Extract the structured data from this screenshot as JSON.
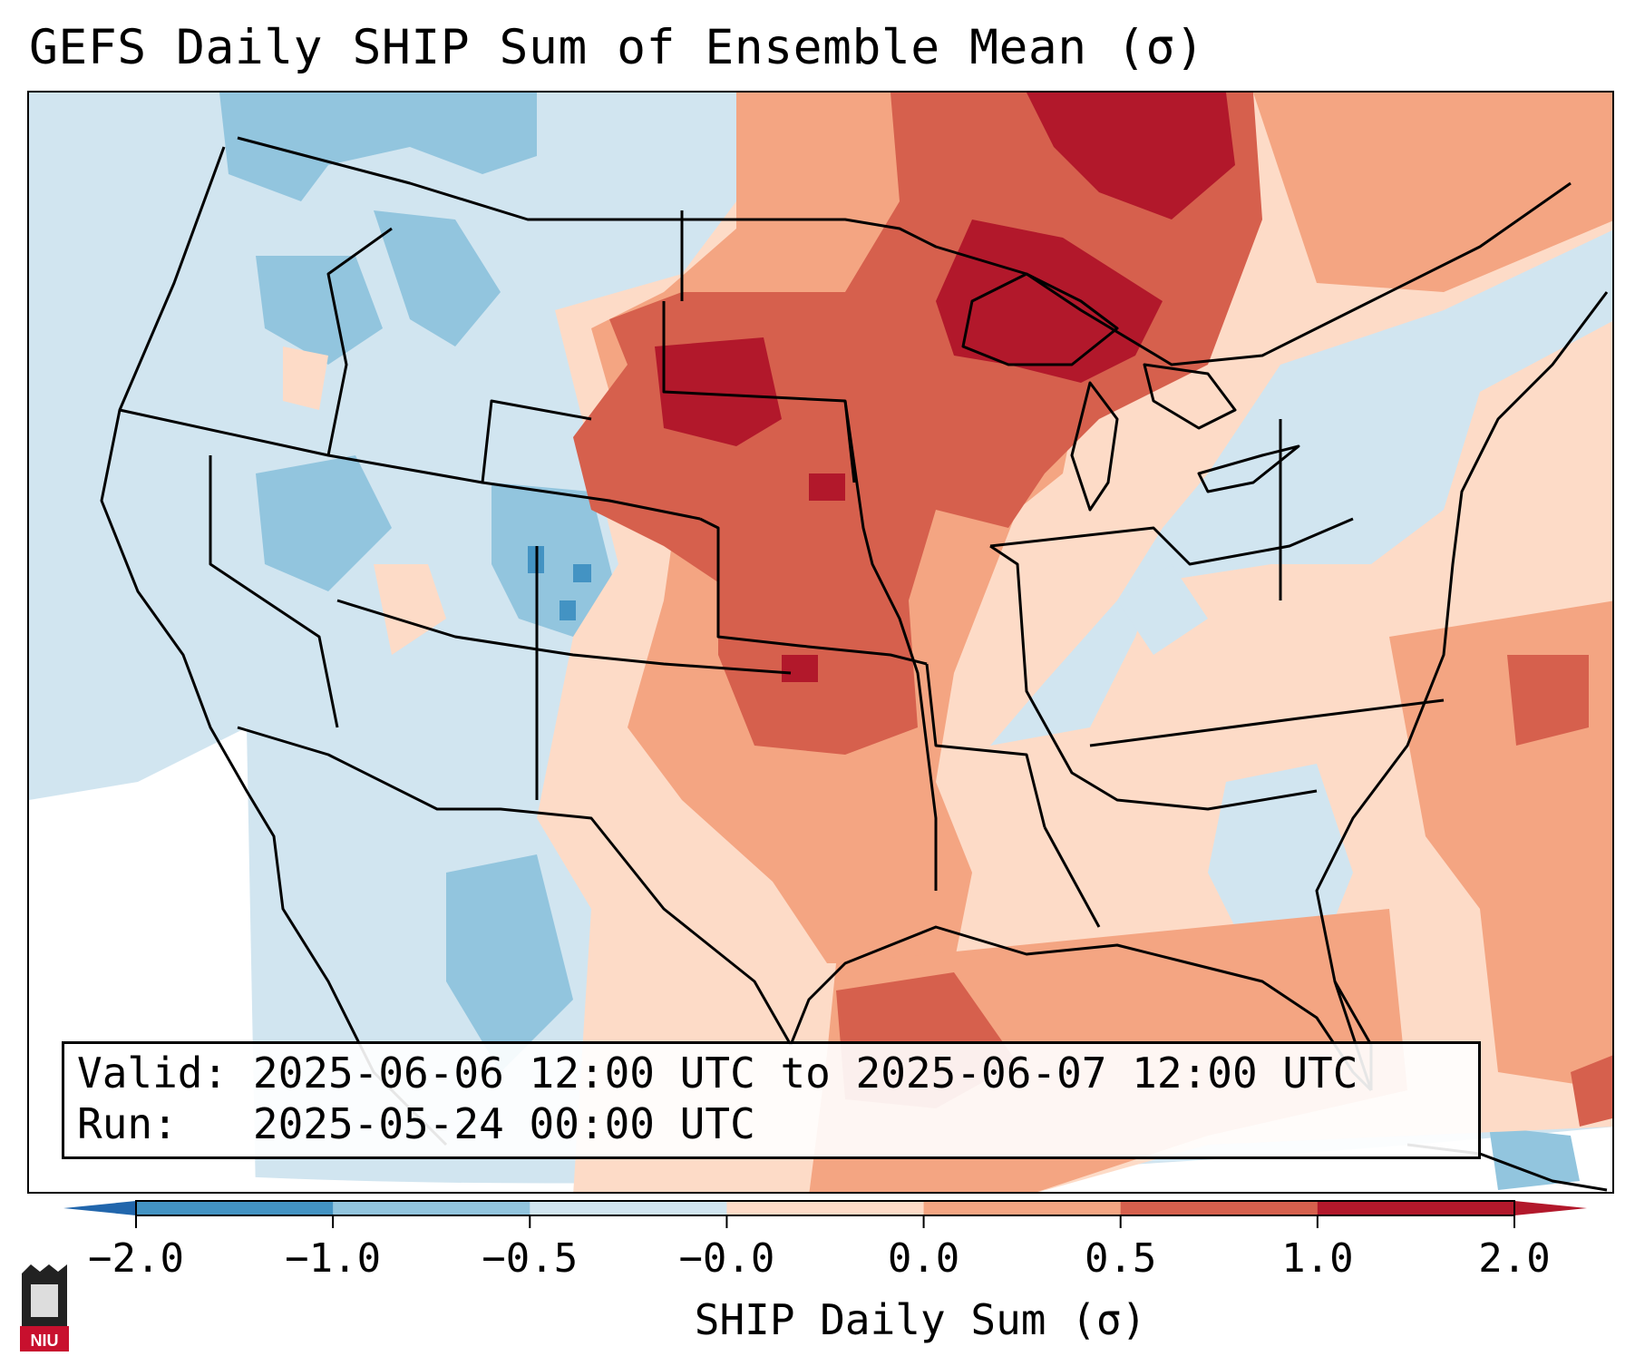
{
  "title": "GEFS Daily SHIP Sum of Ensemble Mean (σ)",
  "info": {
    "valid_label": "Valid:",
    "valid_value": "2025-06-06 12:00 UTC to 2025-06-07 12:00 UTC",
    "run_label": "Run:",
    "run_value": "2025-05-24 00:00 UTC"
  },
  "colorbar": {
    "label": "SHIP Daily Sum (σ)",
    "ticks": [
      "−2.0",
      "−1.0",
      "−0.5",
      "−0.0",
      "0.0",
      "0.5",
      "1.0",
      "2.0"
    ],
    "colors": [
      "#4393c3",
      "#92c5de",
      "#d1e5f0",
      "#fddbc7",
      "#f4a582",
      "#d6604d",
      "#b2182b"
    ],
    "extend_low_color": "#2166ac",
    "extend_high_color": "#b2182b"
  },
  "logo": {
    "text": "NIU",
    "color": "#c8102e"
  }
}
